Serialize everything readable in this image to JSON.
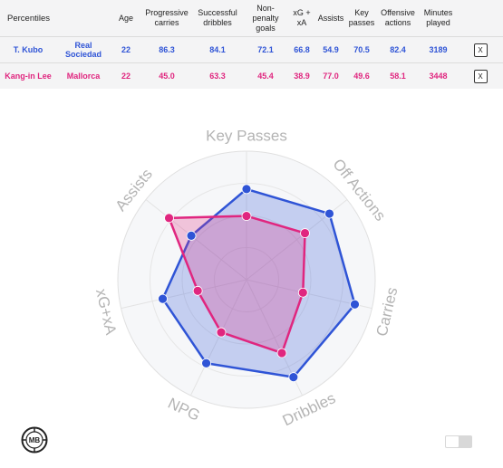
{
  "table": {
    "headers": [
      "Percentiles",
      "Age",
      "Progressive carries",
      "Successful dribbles",
      "Non-penalty goals",
      "xG + xA",
      "Assists",
      "Key passes",
      "Offensive actions",
      "Minutes played"
    ],
    "rows": [
      {
        "player": "T. Kubo",
        "team": "Real Sociedad",
        "values": [
          "22",
          "86.3",
          "84.1",
          "72.1",
          "66.8",
          "54.9",
          "70.5",
          "82.4",
          "3189"
        ],
        "close": "X"
      },
      {
        "player": "Kang-in Lee",
        "team": "Mallorca",
        "values": [
          "22",
          "45.0",
          "63.3",
          "45.4",
          "38.9",
          "77.0",
          "49.6",
          "58.1",
          "3448"
        ],
        "close": "X"
      }
    ]
  },
  "chart_data": {
    "type": "radar",
    "axes": [
      "Key Passes",
      "Off Actions",
      "Carries",
      "Dribbles",
      "NPG",
      "xG+xA",
      "Assists"
    ],
    "range": [
      0,
      100
    ],
    "series": [
      {
        "name": "T. Kubo",
        "color": "#2f54d6",
        "values": [
          70.5,
          82.4,
          86.3,
          84.1,
          72.1,
          66.8,
          54.9
        ]
      },
      {
        "name": "Kang-in Lee",
        "color": "#e0267f",
        "values": [
          49.6,
          58.1,
          45.0,
          63.3,
          45.4,
          38.9,
          77.0
        ]
      }
    ]
  },
  "logo_text": "MB"
}
